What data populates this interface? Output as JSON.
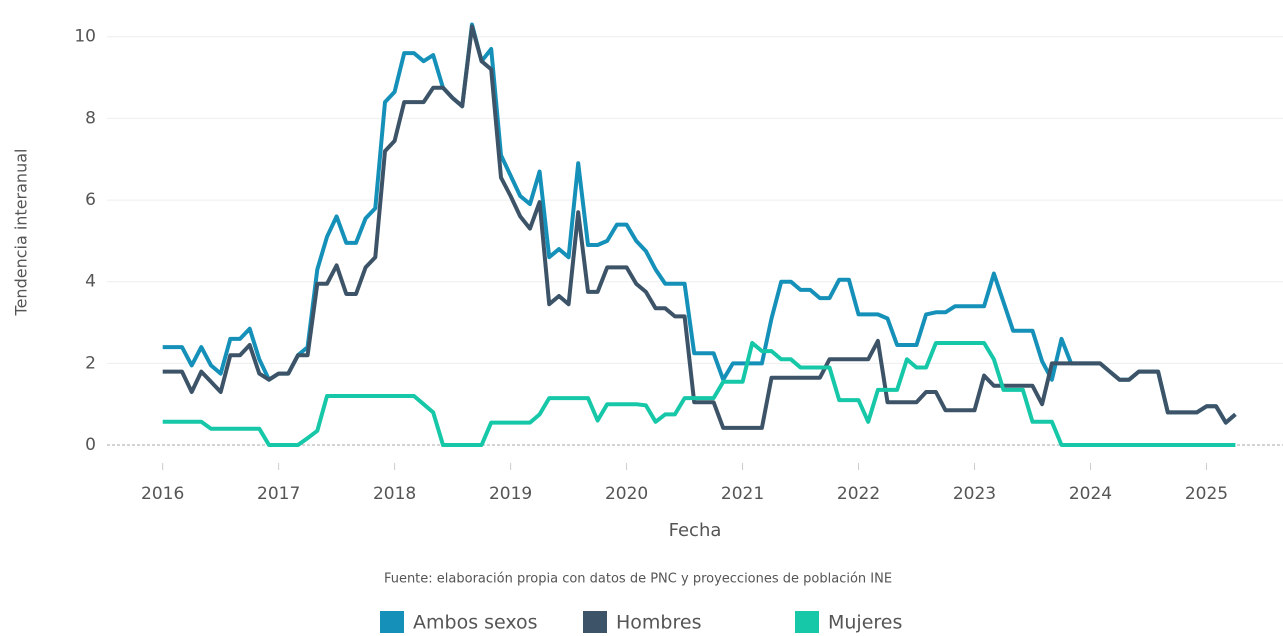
{
  "chart_data": {
    "type": "line",
    "source": "Fuente: elaboración propia con datos de PNC y proyecciones de población INE",
    "x_label": "Fecha",
    "y_label": "Tendencia interanual",
    "x": [
      2016,
      2016.083,
      2016.167,
      2016.25,
      2016.333,
      2016.417,
      2016.5,
      2016.583,
      2016.667,
      2016.75,
      2016.833,
      2016.917,
      2017,
      2017.083,
      2017.167,
      2017.25,
      2017.333,
      2017.417,
      2017.5,
      2017.583,
      2017.667,
      2017.75,
      2017.833,
      2017.917,
      2018,
      2018.083,
      2018.167,
      2018.25,
      2018.333,
      2018.417,
      2018.5,
      2018.583,
      2018.667,
      2018.75,
      2018.833,
      2018.917,
      2019,
      2019.083,
      2019.167,
      2019.25,
      2019.333,
      2019.417,
      2019.5,
      2019.583,
      2019.667,
      2019.75,
      2019.833,
      2019.917,
      2020,
      2020.083,
      2020.167,
      2020.25,
      2020.333,
      2020.417,
      2020.5,
      2020.583,
      2020.667,
      2020.75,
      2020.833,
      2020.917,
      2021,
      2021.083,
      2021.167,
      2021.25,
      2021.333,
      2021.417,
      2021.5,
      2021.583,
      2021.667,
      2021.75,
      2021.833,
      2021.917,
      2022,
      2022.083,
      2022.167,
      2022.25,
      2022.333,
      2022.417,
      2022.5,
      2022.583,
      2022.667,
      2022.75,
      2022.833,
      2022.917,
      2023,
      2023.083,
      2023.167,
      2023.25,
      2023.333,
      2023.417,
      2023.5,
      2023.583,
      2023.667,
      2023.75,
      2023.833,
      2023.917,
      2024,
      2024.083,
      2024.167,
      2024.25,
      2024.333,
      2024.417,
      2024.5,
      2024.583,
      2024.667,
      2024.75,
      2024.833,
      2024.917,
      2025,
      2025.083,
      2025.167,
      2025.25
    ],
    "series": [
      {
        "name": "Ambos sexos",
        "color": "#1591b9",
        "values": [
          2.4,
          2.4,
          2.4,
          1.95,
          2.4,
          1.95,
          1.75,
          2.6,
          2.6,
          2.85,
          2.1,
          1.6,
          1.75,
          1.75,
          2.2,
          2.4,
          4.3,
          5.1,
          5.6,
          4.95,
          4.95,
          5.55,
          5.8,
          8.4,
          8.65,
          9.6,
          9.6,
          9.4,
          9.55,
          8.75,
          8.5,
          8.3,
          10.3,
          9.4,
          9.7,
          7.1,
          6.6,
          6.1,
          5.9,
          6.7,
          4.6,
          4.8,
          4.6,
          6.9,
          4.9,
          4.9,
          5.0,
          5.4,
          5.4,
          5.0,
          4.75,
          4.3,
          3.95,
          3.95,
          3.95,
          2.25,
          2.25,
          2.25,
          1.6,
          2.0,
          2.0,
          2.0,
          2.0,
          3.1,
          4.0,
          4.0,
          3.8,
          3.8,
          3.6,
          3.6,
          4.05,
          4.05,
          3.2,
          3.2,
          3.2,
          3.1,
          2.45,
          2.45,
          2.45,
          3.2,
          3.25,
          3.25,
          3.4,
          3.4,
          3.4,
          3.4,
          4.2,
          3.5,
          2.8,
          2.8,
          2.8,
          2.05,
          1.6,
          2.6,
          2.0,
          2.0,
          2.0,
          2.0,
          1.8,
          1.6,
          1.6,
          1.8,
          1.8,
          1.8,
          0.8,
          0.8,
          0.8,
          0.8,
          0.95,
          0.95,
          0.55,
          0.75
        ]
      },
      {
        "name": "Hombres",
        "color": "#3d5468",
        "values": [
          1.8,
          1.8,
          1.8,
          1.3,
          1.8,
          1.55,
          1.3,
          2.2,
          2.2,
          2.45,
          1.75,
          1.6,
          1.75,
          1.75,
          2.2,
          2.2,
          3.95,
          3.95,
          4.4,
          3.7,
          3.7,
          4.35,
          4.6,
          7.2,
          7.45,
          8.4,
          8.4,
          8.4,
          8.75,
          8.75,
          8.5,
          8.3,
          10.25,
          9.4,
          9.2,
          6.55,
          6.1,
          5.6,
          5.3,
          5.95,
          3.45,
          3.65,
          3.45,
          5.7,
          3.75,
          3.75,
          4.35,
          4.35,
          4.35,
          3.95,
          3.75,
          3.35,
          3.35,
          3.15,
          3.15,
          1.05,
          1.05,
          1.05,
          0.42,
          0.42,
          0.42,
          0.42,
          0.42,
          1.65,
          1.65,
          1.65,
          1.65,
          1.65,
          1.65,
          2.1,
          2.1,
          2.1,
          2.1,
          2.1,
          2.55,
          1.05,
          1.05,
          1.05,
          1.05,
          1.3,
          1.3,
          0.85,
          0.85,
          0.85,
          0.85,
          1.7,
          1.45,
          1.45,
          1.45,
          1.45,
          1.45,
          1.0,
          2.0,
          2.0,
          2.0,
          2.0,
          2.0,
          2.0,
          1.8,
          1.6,
          1.6,
          1.8,
          1.8,
          1.8,
          0.8,
          0.8,
          0.8,
          0.8,
          0.95,
          0.95,
          0.55,
          0.75
        ]
      },
      {
        "name": "Mujeres",
        "color": "#16c7a8",
        "values": [
          0.57,
          0.57,
          0.57,
          0.57,
          0.57,
          0.4,
          0.4,
          0.4,
          0.4,
          0.4,
          0.4,
          0,
          0,
          0,
          0,
          0.17,
          0.35,
          1.2,
          1.2,
          1.2,
          1.2,
          1.2,
          1.2,
          1.2,
          1.2,
          1.2,
          1.2,
          1.0,
          0.8,
          0,
          0,
          0,
          0,
          0,
          0.55,
          0.55,
          0.55,
          0.55,
          0.55,
          0.75,
          1.15,
          1.15,
          1.15,
          1.15,
          1.15,
          0.6,
          1.0,
          1.0,
          1.0,
          1.0,
          0.97,
          0.57,
          0.75,
          0.75,
          1.15,
          1.15,
          1.15,
          1.15,
          1.55,
          1.55,
          1.55,
          2.5,
          2.3,
          2.3,
          2.1,
          2.1,
          1.9,
          1.9,
          1.9,
          1.9,
          1.1,
          1.1,
          1.1,
          0.57,
          1.35,
          1.35,
          1.35,
          2.1,
          1.9,
          1.9,
          2.5,
          2.5,
          2.5,
          2.5,
          2.5,
          2.5,
          2.1,
          1.35,
          1.35,
          1.35,
          0.57,
          0.57,
          0.57,
          0,
          0,
          0,
          0,
          0,
          0,
          0,
          0,
          0,
          0,
          0,
          0,
          0,
          0,
          0,
          0,
          0,
          0,
          0
        ]
      }
    ],
    "xlim": [
      2015.52,
      2025.66
    ],
    "xticks": [
      2016,
      2017,
      2018,
      2019,
      2020,
      2021,
      2022,
      2023,
      2024,
      2025
    ],
    "ylim": [
      -0.55,
      10.9
    ],
    "yticks": [
      0,
      2,
      4,
      6,
      8,
      10
    ],
    "grid": true,
    "legend": "bottom"
  }
}
